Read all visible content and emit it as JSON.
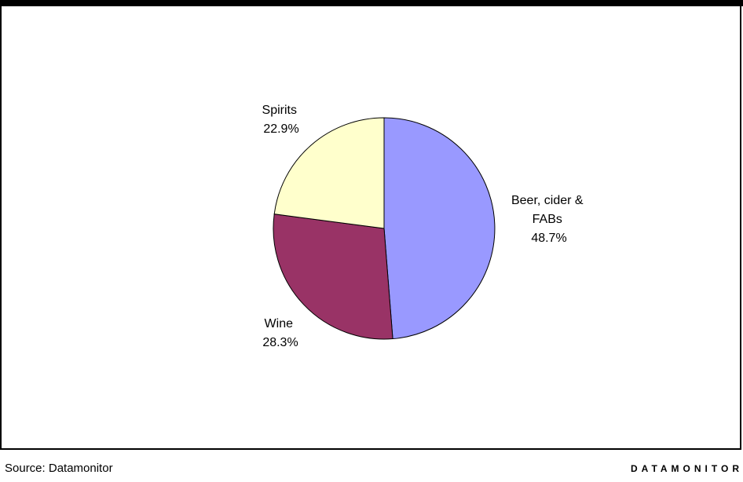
{
  "chart_data": {
    "type": "pie",
    "slices": [
      {
        "label_lines": [
          "Beer, cider &",
          "FABs"
        ],
        "value_text": "48.7%",
        "value": 48.7,
        "color": "#9999ff"
      },
      {
        "label_lines": [
          "Wine"
        ],
        "value_text": "28.3%",
        "value": 28.3,
        "color": "#993366"
      },
      {
        "label_lines": [
          "Spirits"
        ],
        "value_text": "22.9%",
        "value": 22.9,
        "color": "#ffffcc"
      }
    ],
    "start_angle_deg": 0,
    "direction": "clockwise",
    "legend": "none",
    "border_color": "#000000"
  },
  "footer": {
    "source": "Source: Datamonitor",
    "brand": "DATAMONITOR"
  }
}
